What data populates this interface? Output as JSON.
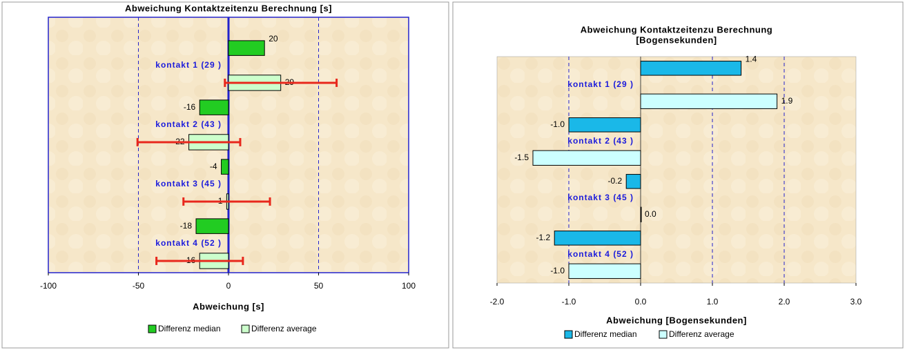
{
  "chart_data": [
    {
      "type": "bar",
      "orientation": "horizontal",
      "title": [
        "Abweichung Kontaktzeitenzu Berechnung [s]"
      ],
      "x_label": "Abweichung [s]",
      "categories": [
        "kontakt 1 (29 )",
        "kontakt 2 (43 )",
        "kontakt 3 (45 )",
        "kontakt 4 (52 )"
      ],
      "series": [
        {
          "name": "Differenz median",
          "color": "#22cc22",
          "values": [
            20,
            -16,
            -4,
            -18
          ]
        },
        {
          "name": "Differenz average",
          "color": "#ccffcc",
          "values": [
            29,
            -22,
            -1,
            -16
          ],
          "errors": [
            31,
            28.5,
            24,
            24
          ],
          "error_color": "#e8271c"
        }
      ],
      "xlim": [
        -100,
        100
      ],
      "xticks": [
        -100,
        -50,
        0,
        50,
        100
      ],
      "grid": true
    },
    {
      "type": "bar",
      "orientation": "horizontal",
      "title": [
        "Abweichung Kontaktzeitenzu Berechnung",
        "[Bogensekunden]"
      ],
      "x_label": "Abweichung [Bogensekunden]",
      "categories": [
        "kontakt 1 (29 )",
        "kontakt 2 (43 )",
        "kontakt 3 (45 )",
        "kontakt 4 (52 )"
      ],
      "series": [
        {
          "name": "Differenz median",
          "color": "#1ab8e8",
          "values": [
            1.4,
            -1.0,
            -0.2,
            -1.2
          ],
          "value_labels": [
            "1.4",
            "-1.0",
            "-0.2",
            "-1.2"
          ]
        },
        {
          "name": "Differenz average",
          "color": "#ccffff",
          "values": [
            1.9,
            -1.5,
            0,
            -1.0
          ],
          "value_labels": [
            "1.9",
            "-1.5",
            "0.0",
            "-1.0"
          ]
        }
      ],
      "xlim": [
        -2,
        3
      ],
      "xticks": [
        {
          "value": -2,
          "label": "-2.0"
        },
        {
          "value": -1,
          "label": "-1.0"
        },
        {
          "value": 0,
          "label": "0.0"
        },
        {
          "value": 1,
          "label": "1.0"
        },
        {
          "value": 2,
          "label": "2.0"
        },
        {
          "value": 3,
          "label": "3.0"
        }
      ],
      "grid": true
    }
  ]
}
